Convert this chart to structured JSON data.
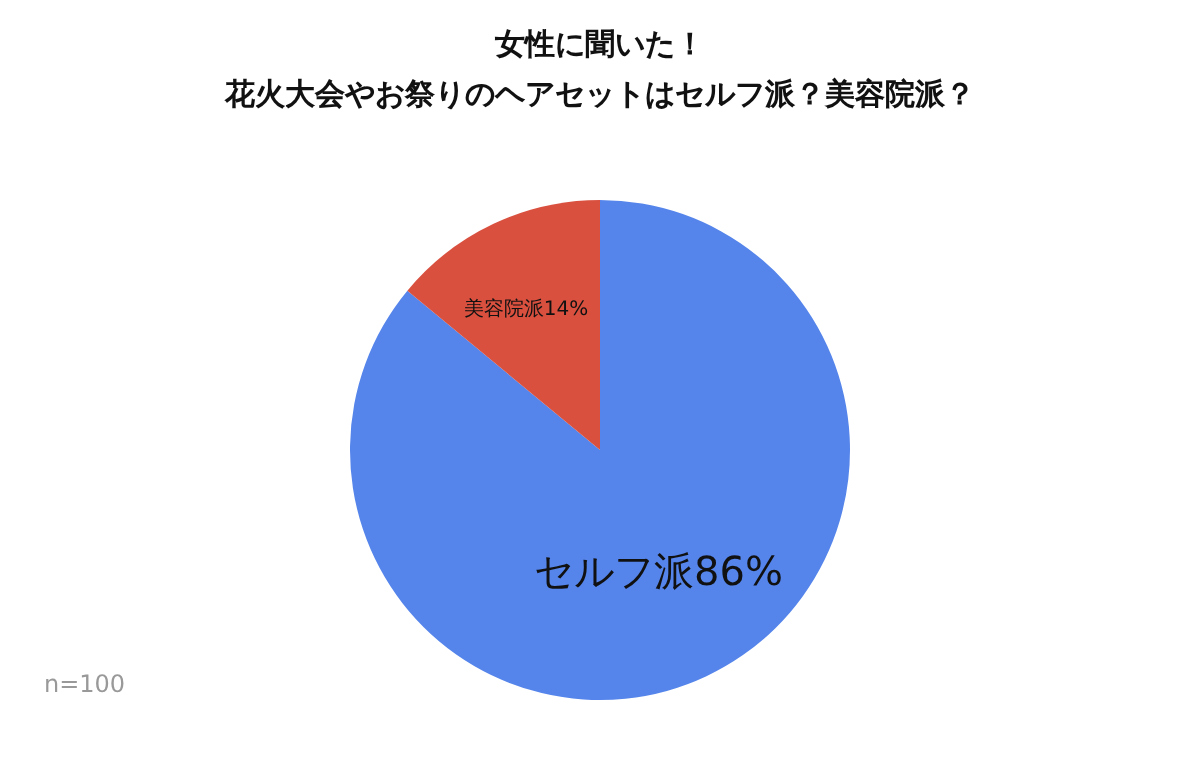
{
  "chart_data": {
    "type": "pie",
    "title": "女性に聞いた！",
    "subtitle": "花火大会やお祭りのヘアセットはセルフ派？美容院派？",
    "categories": [
      "セルフ派",
      "美容院派"
    ],
    "values": [
      86,
      14
    ],
    "colors": [
      "#5585eb",
      "#d9503f"
    ],
    "value_labels": [
      "86%",
      "14%"
    ],
    "annotations": [
      "n=100"
    ],
    "legend": false
  }
}
